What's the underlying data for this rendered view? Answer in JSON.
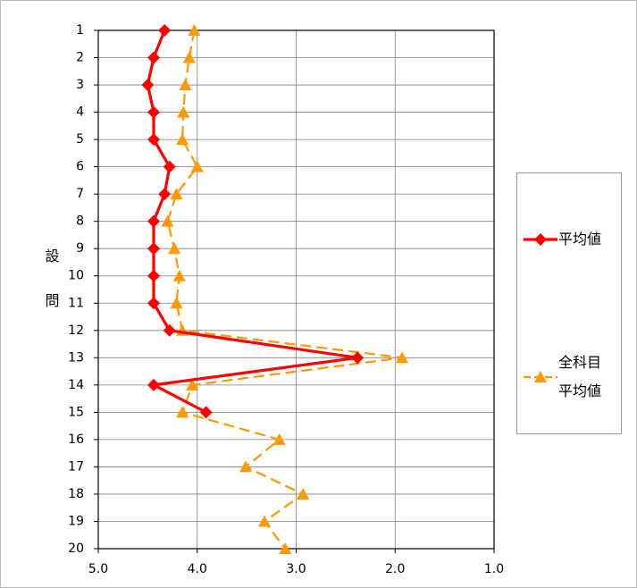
{
  "chart_data": {
    "type": "line",
    "orientation": "horizontal",
    "y_label": "設問",
    "categories": [
      "1",
      "2",
      "3",
      "4",
      "5",
      "6",
      "7",
      "8",
      "9",
      "10",
      "11",
      "12",
      "13",
      "14",
      "15",
      "16",
      "17",
      "18",
      "19",
      "20"
    ],
    "series": [
      {
        "name": "平均値",
        "color": "#ff0000",
        "marker": "diamond",
        "dashed": false,
        "values": [
          4.33,
          4.44,
          4.5,
          4.44,
          4.44,
          4.28,
          4.33,
          4.44,
          4.44,
          4.44,
          4.44,
          4.28,
          2.38,
          4.44,
          3.91,
          null,
          null,
          null,
          null,
          null
        ]
      },
      {
        "name": "全科目平均値",
        "color": "#ff9900",
        "marker": "triangle",
        "dashed": true,
        "values": [
          4.03,
          4.08,
          4.12,
          4.14,
          4.15,
          4.0,
          4.21,
          4.3,
          4.23,
          4.18,
          4.21,
          4.15,
          1.93,
          4.05,
          4.15,
          3.17,
          3.51,
          2.93,
          3.32,
          3.11
        ]
      }
    ],
    "xlim": [
      5,
      1
    ],
    "xticks": [
      {
        "value": 5,
        "label": "5.0"
      },
      {
        "value": 4,
        "label": "4.0"
      },
      {
        "value": 3,
        "label": "3.0"
      },
      {
        "value": 2,
        "label": "2.0"
      },
      {
        "value": 1,
        "label": "1.0"
      }
    ],
    "grid": true
  }
}
